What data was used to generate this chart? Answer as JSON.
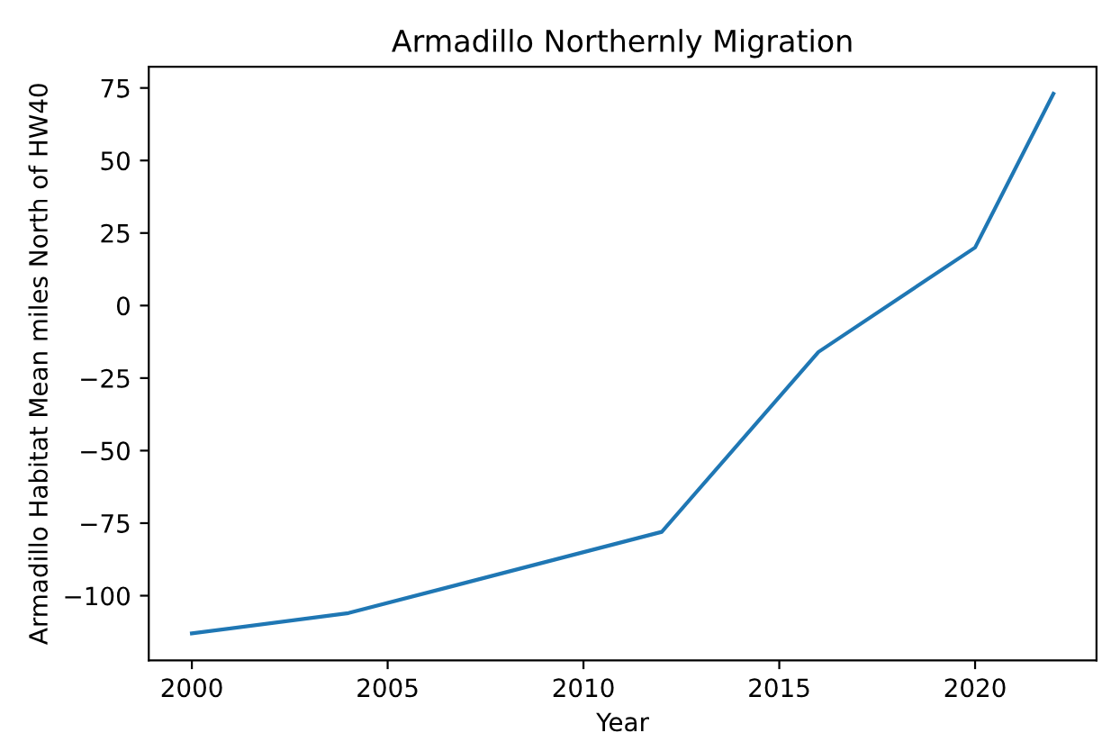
{
  "chart_data": {
    "type": "line",
    "title": "Armadillo Northernly Migration",
    "xlabel": "Year",
    "ylabel": "Armadillo Habitat Mean miles North of HW40",
    "x": [
      2000,
      2004,
      2012,
      2016,
      2020,
      2022
    ],
    "series": [
      {
        "color": "#1f77b4",
        "values": [
          -113,
          -106,
          -78,
          -16,
          20,
          73
        ]
      }
    ],
    "xlim": [
      1998.9,
      2023.1
    ],
    "ylim": [
      -122.3,
      82.3
    ],
    "xticks": [
      2000,
      2005,
      2010,
      2015,
      2020
    ],
    "yticks": [
      -100,
      -75,
      -50,
      -25,
      0,
      25,
      50,
      75
    ]
  }
}
